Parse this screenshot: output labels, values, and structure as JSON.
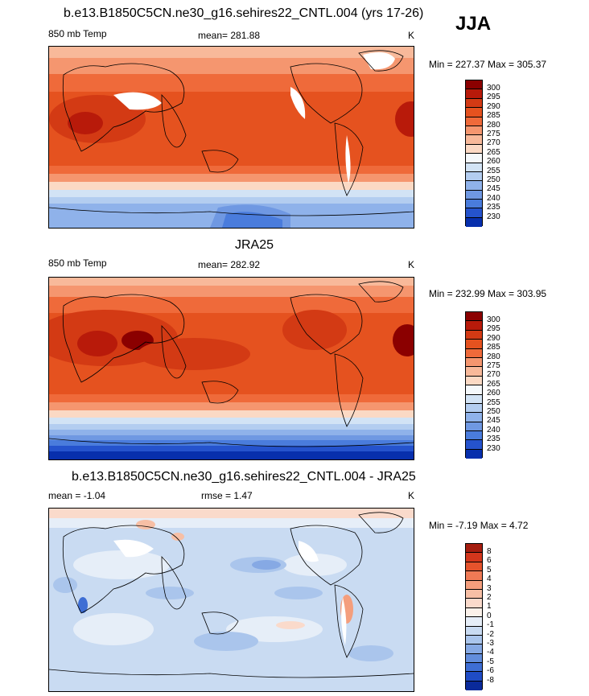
{
  "season": "JJA",
  "panels": [
    {
      "title": "b.e13.B1850C5CN.ne30_g16.sehires22_CNTL.004 (yrs 17-26)",
      "left_label": "850 mb Temp",
      "center_label": "mean= 281.88",
      "right_label": "K",
      "minmax": "Min = 227.37 Max = 305.37"
    },
    {
      "title": "JRA25",
      "left_label": "850 mb Temp",
      "center_label": "mean= 282.92",
      "right_label": "K",
      "minmax": "Min = 232.99 Max = 303.95"
    },
    {
      "title": "b.e13.B1850C5CN.ne30_g16.sehires22_CNTL.004 - JRA25",
      "left_label": "mean =  -1.04",
      "center_label": "rmse =   1.47",
      "right_label": "K",
      "minmax": "Min =  -7.19 Max =   4.72"
    }
  ],
  "chart_data": [
    {
      "type": "heatmap",
      "title": "b.e13.B1850C5CN.ne30_g16.sehires22_CNTL.004 (yrs 17-26)",
      "variable": "850 mb Temp",
      "units": "K",
      "mean": 281.88,
      "min": 227.37,
      "max": 305.37,
      "colorbar_levels": [
        300,
        295,
        290,
        285,
        280,
        275,
        270,
        265,
        260,
        255,
        250,
        245,
        240,
        235,
        230
      ],
      "colorbar_colors": [
        "#8b0000",
        "#b81a0a",
        "#d33a14",
        "#e5521f",
        "#ef6a3a",
        "#f5966f",
        "#f8b99a",
        "#fbd9c4",
        "#f4f8fb",
        "#d2e3f5",
        "#b3cdf0",
        "#8fb2ea",
        "#6f98e2",
        "#4a7cdc",
        "#2553cd",
        "#072fad"
      ],
      "grid": false
    },
    {
      "type": "heatmap",
      "title": "JRA25",
      "variable": "850 mb Temp",
      "units": "K",
      "mean": 282.92,
      "min": 232.99,
      "max": 303.95,
      "colorbar_levels": [
        300,
        295,
        290,
        285,
        280,
        275,
        270,
        265,
        260,
        255,
        250,
        245,
        240,
        235,
        230
      ],
      "colorbar_colors": [
        "#8b0000",
        "#b81a0a",
        "#d33a14",
        "#e5521f",
        "#ef6a3a",
        "#f5966f",
        "#f8b99a",
        "#fbd9c4",
        "#f4f8fb",
        "#d2e3f5",
        "#b3cdf0",
        "#8fb2ea",
        "#6f98e2",
        "#4a7cdc",
        "#2553cd",
        "#072fad"
      ],
      "grid": false
    },
    {
      "type": "heatmap",
      "title": "b.e13.B1850C5CN.ne30_g16.sehires22_CNTL.004 - JRA25",
      "units": "K",
      "mean": -1.04,
      "rmse": 1.47,
      "min": -7.19,
      "max": 4.72,
      "colorbar_levels": [
        8,
        6,
        5,
        4,
        3,
        2,
        1,
        0,
        -1,
        -2,
        -3,
        -4,
        -5,
        -6,
        -8
      ],
      "colorbar_colors": [
        "#a51d0f",
        "#d3361c",
        "#e5532c",
        "#ef7a55",
        "#f49e7d",
        "#f7bfa5",
        "#fadacb",
        "#fbf1ea",
        "#e6eef8",
        "#c9dbf2",
        "#aac5ec",
        "#86a9e4",
        "#628ddc",
        "#3e6ed4",
        "#1f4cc6",
        "#0a2a9a"
      ],
      "grid": false
    }
  ]
}
